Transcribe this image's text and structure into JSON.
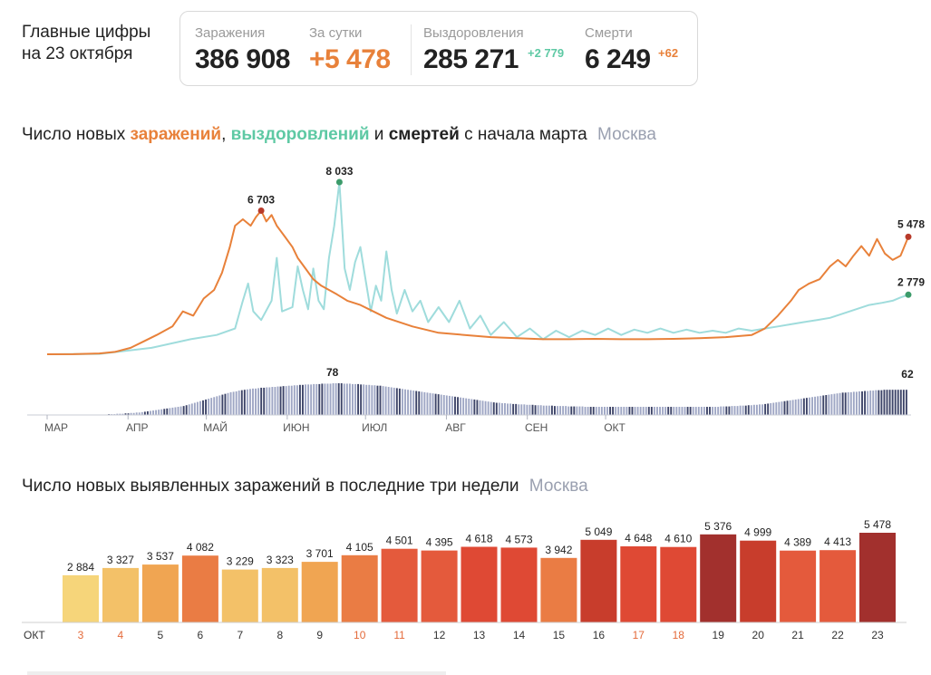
{
  "header": {
    "title_line1": "Главные цифры",
    "title_line2": "на 23 октября"
  },
  "stats": {
    "infections": {
      "label": "Заражения",
      "value": "386 908"
    },
    "per_day": {
      "label": "За сутки",
      "value": "+5 478"
    },
    "recoveries": {
      "label": "Выздоровления",
      "value": "285 271",
      "delta": "+2 779"
    },
    "deaths": {
      "label": "Смерти",
      "value": "6 249",
      "delta": "+62"
    }
  },
  "colors": {
    "infections": "#e8813a",
    "infections_peak": "#b83a2a",
    "recoveries": "#5ec9a4",
    "recoveries_light": "#9fdcdc",
    "deaths": "#3d4468",
    "deaths_light": "#9ea6c4",
    "muted": "#9aa0b0",
    "negative": "#e46a3a"
  },
  "section1": {
    "t1": "Число новых ",
    "t2": "заражений",
    "t3": ", ",
    "t4": "выздоровлений",
    "t5": " и ",
    "t6": "смертей",
    "t7": " с начала марта",
    "region": "Москва"
  },
  "section2": {
    "title": "Число новых выявленных заражений в последние три недели",
    "region": "Москва"
  },
  "chart_data": [
    {
      "type": "line",
      "x_ticks": [
        "МАР",
        "АПР",
        "МАЙ",
        "ИЮН",
        "ИЮЛ",
        "АВГ",
        "СЕН",
        "ОКТ"
      ],
      "series": [
        {
          "name": "заражений",
          "points": [
            [
              0,
              0
            ],
            [
              10,
              5
            ],
            [
              20,
              40
            ],
            [
              26,
              110
            ],
            [
              32,
              300
            ],
            [
              37,
              600
            ],
            [
              42,
              900
            ],
            [
              48,
              1300
            ],
            [
              52,
              2000
            ],
            [
              56,
              1800
            ],
            [
              60,
              2600
            ],
            [
              64,
              3000
            ],
            [
              67,
              3800
            ],
            [
              70,
              5000
            ],
            [
              72,
              6000
            ],
            [
              75,
              6300
            ],
            [
              78,
              6000
            ],
            [
              80,
              6400
            ],
            [
              82,
              6703
            ],
            [
              84,
              6200
            ],
            [
              86,
              6500
            ],
            [
              88,
              6000
            ],
            [
              91,
              5500
            ],
            [
              94,
              5000
            ],
            [
              96,
              4500
            ],
            [
              99,
              4000
            ],
            [
              102,
              3500
            ],
            [
              105,
              3200
            ],
            [
              108,
              3000
            ],
            [
              111,
              2800
            ],
            [
              115,
              2500
            ],
            [
              120,
              2300
            ],
            [
              125,
              2000
            ],
            [
              130,
              1700
            ],
            [
              140,
              1300
            ],
            [
              150,
              1000
            ],
            [
              160,
              900
            ],
            [
              170,
              800
            ],
            [
              180,
              750
            ],
            [
              190,
              700
            ],
            [
              200,
              700
            ],
            [
              210,
              720
            ],
            [
              220,
              700
            ],
            [
              230,
              700
            ],
            [
              240,
              720
            ],
            [
              250,
              750
            ],
            [
              260,
              800
            ],
            [
              270,
              900
            ],
            [
              275,
              1200
            ],
            [
              280,
              1800
            ],
            [
              285,
              2500
            ],
            [
              288,
              3000
            ],
            [
              292,
              3300
            ],
            [
              296,
              3500
            ],
            [
              300,
              4100
            ],
            [
              303,
              4400
            ],
            [
              306,
              4100
            ],
            [
              309,
              4600
            ],
            [
              312,
              5049
            ],
            [
              315,
              4600
            ],
            [
              318,
              5376
            ],
            [
              321,
              4700
            ],
            [
              324,
              4400
            ],
            [
              327,
              4600
            ],
            [
              330,
              5478
            ]
          ],
          "peak_label": "6 703",
          "last_label": "5 478"
        },
        {
          "name": "выздоровлений",
          "points": [
            [
              0,
              0
            ],
            [
              20,
              15
            ],
            [
              40,
              300
            ],
            [
              55,
              700
            ],
            [
              65,
              900
            ],
            [
              72,
              1200
            ],
            [
              75,
              2500
            ],
            [
              77,
              3300
            ],
            [
              79,
              2000
            ],
            [
              82,
              1600
            ],
            [
              86,
              2500
            ],
            [
              88,
              4500
            ],
            [
              90,
              2000
            ],
            [
              94,
              2200
            ],
            [
              96,
              4100
            ],
            [
              98,
              3000
            ],
            [
              100,
              2100
            ],
            [
              102,
              4000
            ],
            [
              104,
              2500
            ],
            [
              106,
              2100
            ],
            [
              108,
              4500
            ],
            [
              110,
              6000
            ],
            [
              112,
              8033
            ],
            [
              114,
              4000
            ],
            [
              116,
              3000
            ],
            [
              118,
              4300
            ],
            [
              120,
              5000
            ],
            [
              122,
              3500
            ],
            [
              124,
              2000
            ],
            [
              126,
              3200
            ],
            [
              128,
              2500
            ],
            [
              130,
              4800
            ],
            [
              132,
              3000
            ],
            [
              134,
              1900
            ],
            [
              137,
              3000
            ],
            [
              140,
              2000
            ],
            [
              143,
              2500
            ],
            [
              146,
              1500
            ],
            [
              150,
              2200
            ],
            [
              154,
              1500
            ],
            [
              158,
              2500
            ],
            [
              162,
              1200
            ],
            [
              166,
              1800
            ],
            [
              170,
              900
            ],
            [
              175,
              1500
            ],
            [
              180,
              800
            ],
            [
              185,
              1200
            ],
            [
              190,
              700
            ],
            [
              195,
              1100
            ],
            [
              200,
              800
            ],
            [
              205,
              1100
            ],
            [
              210,
              900
            ],
            [
              215,
              1200
            ],
            [
              220,
              900
            ],
            [
              225,
              1150
            ],
            [
              230,
              1000
            ],
            [
              235,
              1200
            ],
            [
              240,
              1000
            ],
            [
              245,
              1150
            ],
            [
              250,
              1000
            ],
            [
              255,
              1100
            ],
            [
              260,
              1000
            ],
            [
              265,
              1200
            ],
            [
              270,
              1100
            ],
            [
              275,
              1200
            ],
            [
              280,
              1300
            ],
            [
              285,
              1400
            ],
            [
              290,
              1500
            ],
            [
              295,
              1600
            ],
            [
              300,
              1700
            ],
            [
              305,
              1900
            ],
            [
              310,
              2100
            ],
            [
              315,
              2300
            ],
            [
              320,
              2400
            ],
            [
              324,
              2500
            ],
            [
              327,
              2650
            ],
            [
              330,
              2779
            ]
          ],
          "peak_label": "8 033",
          "last_label": "2 779"
        },
        {
          "name": "смертей",
          "bars_label_peak": "78",
          "bars_label_last": "62",
          "values": [
            0,
            0,
            0,
            0,
            0,
            0,
            0,
            0,
            0,
            0,
            0,
            0,
            0,
            0,
            0,
            0,
            0,
            0,
            1,
            1,
            1,
            1,
            2,
            2,
            2,
            3,
            3,
            3,
            4,
            4,
            5,
            5,
            6,
            6,
            7,
            8,
            9,
            10,
            11,
            12,
            13,
            14,
            15,
            16,
            17,
            18,
            19,
            20,
            21,
            22,
            24,
            26,
            28,
            30,
            32,
            34,
            36,
            38,
            40,
            42,
            44,
            46,
            48,
            50,
            52,
            54,
            56,
            57,
            58,
            60,
            61,
            62,
            63,
            64,
            65,
            65,
            66,
            67,
            67,
            68,
            68,
            69,
            69,
            70,
            70,
            71,
            71,
            72,
            72,
            73,
            73,
            74,
            74,
            75,
            75,
            75,
            76,
            76,
            76,
            77,
            77,
            77,
            77,
            78,
            78,
            78,
            78,
            77,
            77,
            77,
            76,
            76,
            76,
            75,
            75,
            74,
            74,
            73,
            73,
            72,
            72,
            71,
            70,
            69,
            68,
            67,
            66,
            65,
            64,
            63,
            62,
            61,
            60,
            59,
            58,
            57,
            56,
            55,
            54,
            53,
            52,
            51,
            50,
            49,
            48,
            47,
            46,
            45,
            44,
            43,
            42,
            41,
            40,
            39,
            38,
            37,
            36,
            35,
            34,
            33,
            32,
            31,
            30,
            30,
            29,
            29,
            28,
            28,
            27,
            27,
            26,
            26,
            26,
            25,
            25,
            25,
            24,
            24,
            24,
            23,
            23,
            23,
            23,
            22,
            22,
            22,
            22,
            22,
            21,
            21,
            21,
            21,
            21,
            21,
            20,
            20,
            20,
            20,
            20,
            20,
            20,
            20,
            20,
            20,
            20,
            20,
            20,
            20,
            20,
            20,
            20,
            20,
            20,
            20,
            20,
            20,
            20,
            20,
            20,
            20,
            20,
            20,
            20,
            20,
            20,
            20,
            20,
            20,
            20,
            20,
            20,
            20,
            20,
            20,
            20,
            20,
            20,
            20,
            20,
            20,
            20,
            20,
            20,
            21,
            21,
            21,
            21,
            22,
            22,
            22,
            23,
            23,
            23,
            24,
            24,
            25,
            25,
            26,
            26,
            27,
            28,
            29,
            30,
            31,
            32,
            33,
            34,
            35,
            36,
            37,
            38,
            39,
            40,
            41,
            42,
            43,
            44,
            45,
            46,
            47,
            48,
            49,
            50,
            51,
            52,
            53,
            54,
            55,
            55,
            56,
            56,
            57,
            57,
            58,
            58,
            59,
            59,
            60,
            60,
            61,
            61,
            61,
            62,
            62,
            62,
            62,
            62,
            62,
            62,
            62,
            62
          ]
        }
      ],
      "y_max": 8033,
      "x_max": 330
    },
    {
      "type": "bar",
      "xlabel": "ОКТ",
      "categories": [
        "3",
        "4",
        "5",
        "6",
        "7",
        "8",
        "9",
        "10",
        "11",
        "12",
        "13",
        "14",
        "15",
        "16",
        "17",
        "18",
        "19",
        "20",
        "21",
        "22",
        "23"
      ],
      "weekend": [
        true,
        true,
        false,
        false,
        false,
        false,
        false,
        true,
        true,
        false,
        false,
        false,
        false,
        false,
        true,
        true,
        false,
        false,
        false,
        false,
        false
      ],
      "values": [
        2884,
        3327,
        3537,
        4082,
        3229,
        3323,
        3701,
        4105,
        4501,
        4395,
        4618,
        4573,
        3942,
        5049,
        4648,
        4610,
        5376,
        4999,
        4389,
        4413,
        5478
      ],
      "value_labels": [
        "2 884",
        "3 327",
        "3 537",
        "4 082",
        "3 229",
        "3 323",
        "3 701",
        "4 105",
        "4 501",
        "4 395",
        "4 618",
        "4 573",
        "3 942",
        "5 049",
        "4 648",
        "4 610",
        "5 376",
        "4 999",
        "4 389",
        "4 413",
        "5 478"
      ]
    }
  ]
}
